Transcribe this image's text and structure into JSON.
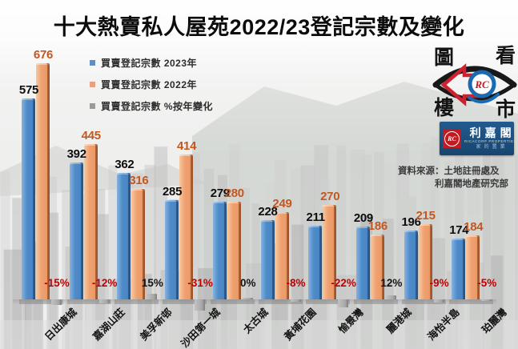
{
  "title": "十大熱賣私人屋苑2022/23登記宗數及變化",
  "legend": {
    "items": [
      {
        "label": "買賣登記宗數 2023年",
        "color": "#5b8fc6"
      },
      {
        "label": "買賣登記宗數 2022年",
        "color": "#e8a083"
      },
      {
        "label": "買賣登記宗數 %按年變化",
        "color": "#9a9a9a"
      }
    ]
  },
  "logo": {
    "eye_chars": {
      "top_left": "圖",
      "top_right": "看",
      "bottom_left": "樓",
      "bottom_right": "市"
    },
    "monogram": "RC",
    "brand_cn": "利嘉閣",
    "brand_en": "RICACORP PROPERTIES",
    "brand_slogan": "家的置業"
  },
  "source": {
    "line1": "資料來源：土地註冊處及",
    "line2": "利嘉閣地產研究部"
  },
  "chart_data": {
    "type": "bar",
    "title": "十大熱賣私人屋苑2022/23登記宗數及變化",
    "categories": [
      "日出康城",
      "嘉湖山莊",
      "美孚新邨",
      "沙田第一城",
      "太古城",
      "黃埔花園",
      "愉景灣",
      "麗港城",
      "海怡半島",
      "珀麗灣"
    ],
    "series": [
      {
        "name": "買賣登記宗數 2023年",
        "color": "#4e8bc8",
        "values": [
          575,
          392,
          362,
          285,
          279,
          228,
          211,
          209,
          196,
          174
        ]
      },
      {
        "name": "買賣登記宗數 2022年",
        "color": "#efa171",
        "values": [
          676,
          445,
          316,
          414,
          280,
          249,
          270,
          186,
          215,
          184
        ]
      },
      {
        "name": "買賣登記宗數 %按年變化",
        "color": "#a8a8a8",
        "values": [
          -15,
          -12,
          15,
          -31,
          0,
          -8,
          -22,
          12,
          -9,
          -5
        ],
        "unit": "%"
      }
    ],
    "ylim": [
      0,
      700
    ],
    "grid": false,
    "legend_position": "top-left",
    "label_colors": {
      "series_2023_label": "#0d0d0d",
      "series_2022_label": "#c2571f",
      "pct_negative": "#c00000",
      "pct_positive": "#141414"
    }
  }
}
